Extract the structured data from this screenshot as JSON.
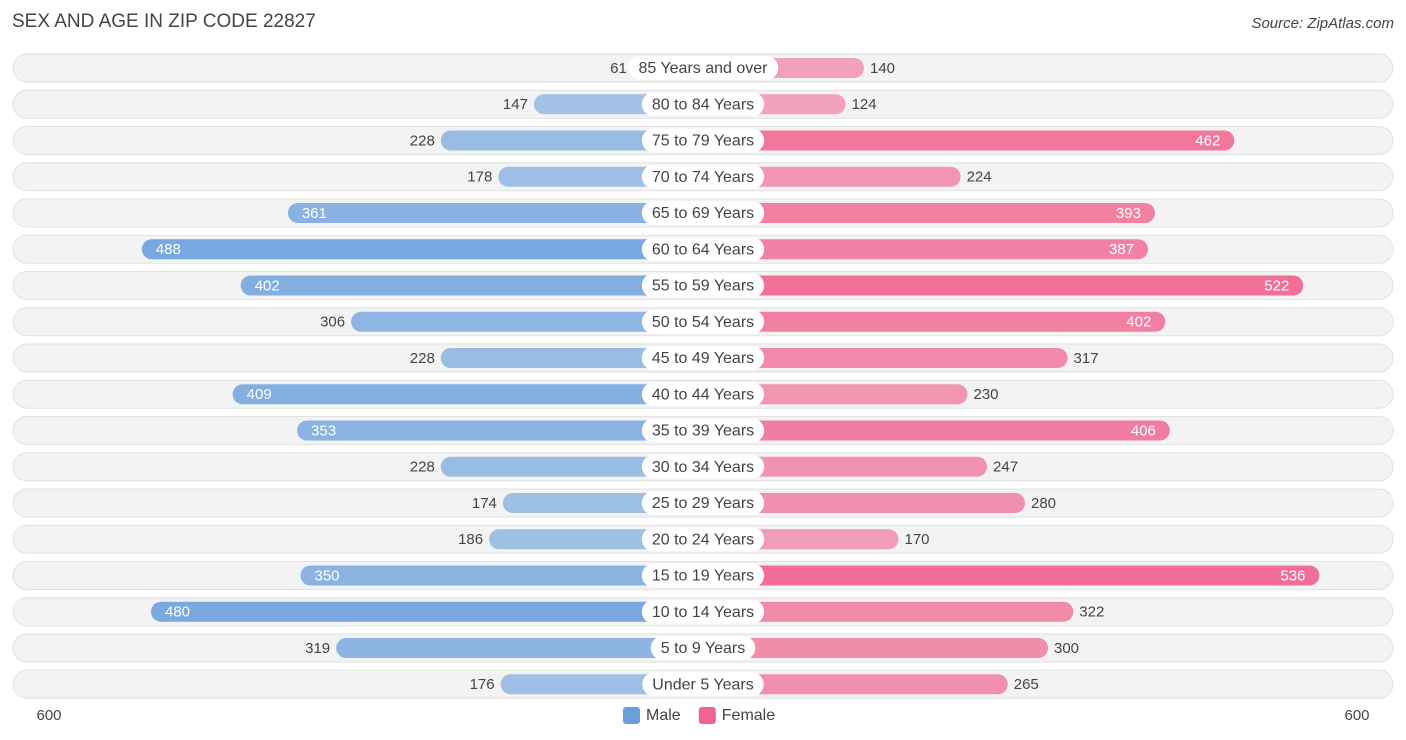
{
  "chart_data": {
    "type": "bar",
    "title": "SEX AND AGE IN ZIP CODE 22827",
    "source": "Source: ZipAtlas.com",
    "categories": [
      "85 Years and over",
      "80 to 84 Years",
      "75 to 79 Years",
      "70 to 74 Years",
      "65 to 69 Years",
      "60 to 64 Years",
      "55 to 59 Years",
      "50 to 54 Years",
      "45 to 49 Years",
      "40 to 44 Years",
      "35 to 39 Years",
      "30 to 34 Years",
      "25 to 29 Years",
      "20 to 24 Years",
      "15 to 19 Years",
      "10 to 14 Years",
      "5 to 9 Years",
      "Under 5 Years"
    ],
    "series": [
      {
        "name": "Male",
        "color": "#6a9fdc",
        "values": [
          61,
          147,
          228,
          178,
          361,
          488,
          402,
          306,
          228,
          409,
          353,
          228,
          174,
          186,
          350,
          480,
          319,
          176
        ]
      },
      {
        "name": "Female",
        "color": "#f06590",
        "values": [
          140,
          124,
          462,
          224,
          393,
          387,
          522,
          402,
          317,
          230,
          406,
          247,
          280,
          170,
          536,
          322,
          300,
          265
        ]
      }
    ],
    "xlim": [
      0,
      600
    ],
    "xticks": [
      600
    ],
    "legend": "bottom"
  }
}
